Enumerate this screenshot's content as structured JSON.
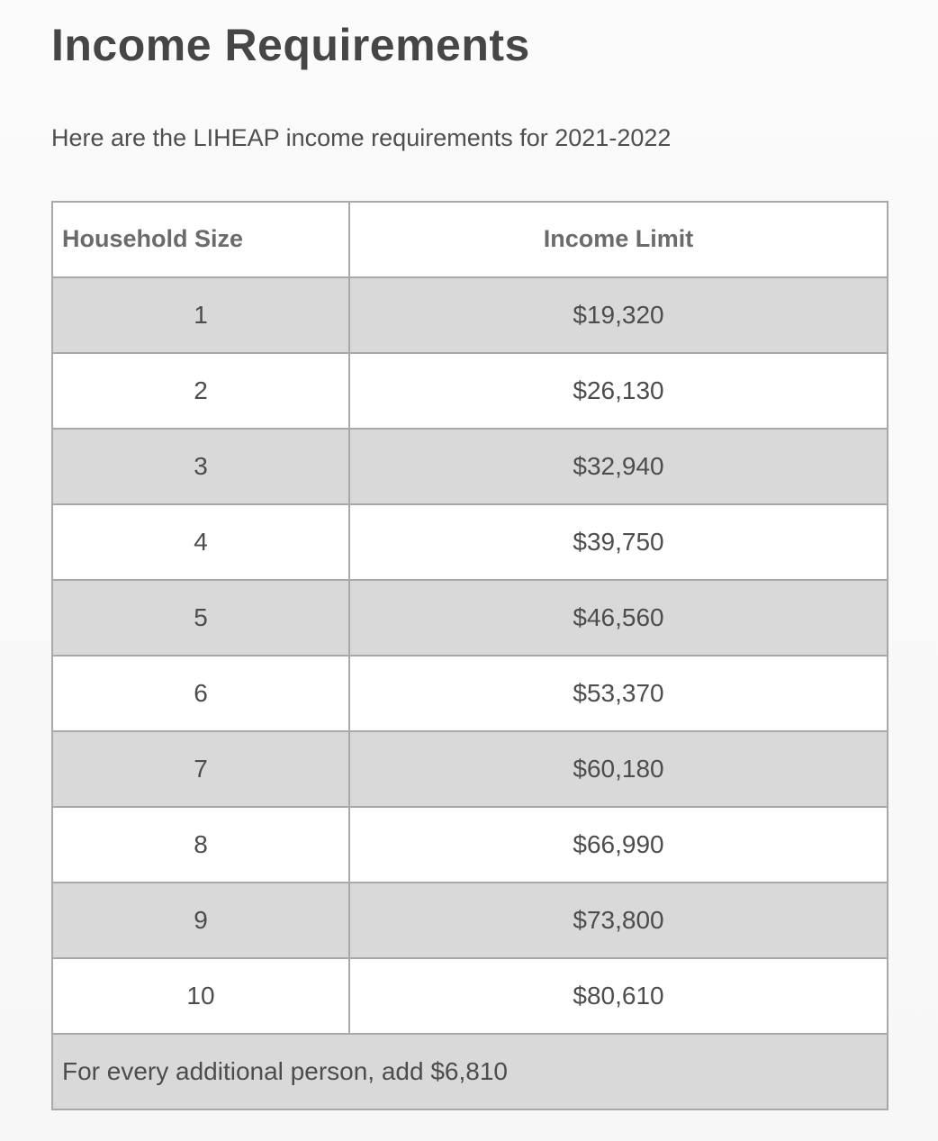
{
  "page": {
    "title": "Income Requirements",
    "subtitle": "Here are the LIHEAP income requirements for 2021-2022"
  },
  "table": {
    "headers": {
      "household_size": "Household Size",
      "income_limit": "Income Limit"
    },
    "rows": [
      {
        "household_size": "1",
        "income_limit": "$19,320"
      },
      {
        "household_size": "2",
        "income_limit": "$26,130"
      },
      {
        "household_size": "3",
        "income_limit": "$32,940"
      },
      {
        "household_size": "4",
        "income_limit": "$39,750"
      },
      {
        "household_size": "5",
        "income_limit": "$46,560"
      },
      {
        "household_size": "6",
        "income_limit": "$53,370"
      },
      {
        "household_size": "7",
        "income_limit": "$60,180"
      },
      {
        "household_size": "8",
        "income_limit": "$66,990"
      },
      {
        "household_size": "9",
        "income_limit": "$73,800"
      },
      {
        "household_size": "10",
        "income_limit": "$80,610"
      }
    ],
    "footer_note": "For every additional person, add $6,810"
  },
  "colors": {
    "stripe_row_background": "#d9d9d9",
    "table_border": "#a9a9a9",
    "page_background": "#f8f8f8",
    "heading_text": "#464646",
    "header_text": "#6b6b6b",
    "body_text": "#4d4d4d"
  }
}
